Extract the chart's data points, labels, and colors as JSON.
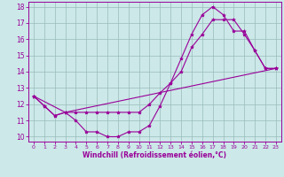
{
  "xlabel": "Windchill (Refroidissement éolien,°C)",
  "bg_color": "#cce8e8",
  "line_color": "#990099",
  "grid_color": "#99bbbb",
  "xlim": [
    -0.5,
    23.5
  ],
  "ylim": [
    9.7,
    18.3
  ],
  "yticks": [
    10,
    11,
    12,
    13,
    14,
    15,
    16,
    17,
    18
  ],
  "xticks": [
    0,
    1,
    2,
    3,
    4,
    5,
    6,
    7,
    8,
    9,
    10,
    11,
    12,
    13,
    14,
    15,
    16,
    17,
    18,
    19,
    20,
    21,
    22,
    23
  ],
  "line1_x": [
    0,
    1,
    2,
    3,
    4,
    5,
    6,
    7,
    8,
    9,
    10,
    11,
    12,
    13,
    14,
    15,
    16,
    17,
    18,
    19,
    20,
    21,
    22,
    23
  ],
  "line1_y": [
    12.5,
    11.9,
    11.3,
    11.5,
    11.0,
    10.3,
    10.3,
    10.0,
    10.0,
    10.3,
    10.3,
    10.7,
    11.9,
    13.3,
    14.8,
    16.3,
    17.5,
    18.0,
    17.5,
    16.5,
    16.5,
    15.3,
    14.2,
    14.2
  ],
  "line2_x": [
    0,
    1,
    2,
    3,
    4,
    5,
    6,
    7,
    8,
    9,
    10,
    11,
    12,
    13,
    14,
    15,
    16,
    17,
    18,
    19,
    20,
    21,
    22,
    23
  ],
  "line2_y": [
    12.5,
    11.9,
    11.3,
    11.5,
    11.5,
    11.5,
    11.5,
    11.5,
    11.5,
    11.5,
    11.5,
    12.0,
    12.7,
    13.3,
    14.0,
    15.5,
    16.3,
    17.2,
    17.2,
    17.2,
    16.3,
    15.3,
    14.2,
    14.2
  ],
  "line3_x": [
    0,
    3,
    23
  ],
  "line3_y": [
    12.5,
    11.5,
    14.2
  ]
}
